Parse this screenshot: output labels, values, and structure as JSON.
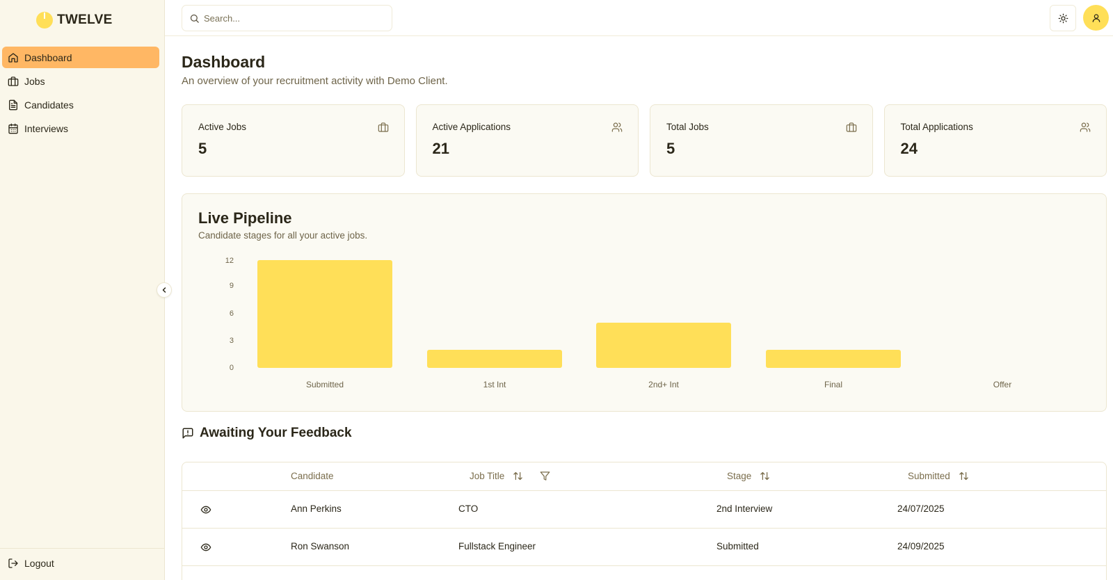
{
  "brand": {
    "name": "TWELVE"
  },
  "sidebar": {
    "items": [
      {
        "label": "Dashboard",
        "icon": "home-icon",
        "active": true
      },
      {
        "label": "Jobs",
        "icon": "briefcase-icon",
        "active": false
      },
      {
        "label": "Candidates",
        "icon": "file-text-icon",
        "active": false
      },
      {
        "label": "Interviews",
        "icon": "calendar-icon",
        "active": false
      }
    ],
    "logout_label": "Logout"
  },
  "topbar": {
    "search_placeholder": "Search...",
    "theme_icon": "sun-icon",
    "avatar_icon": "user-icon"
  },
  "page": {
    "title": "Dashboard",
    "subtitle": "An overview of your recruitment activity with Demo Client."
  },
  "stats": [
    {
      "label": "Active Jobs",
      "value": "5",
      "icon": "briefcase-icon"
    },
    {
      "label": "Active Applications",
      "value": "21",
      "icon": "users-icon"
    },
    {
      "label": "Total Jobs",
      "value": "5",
      "icon": "briefcase-icon"
    },
    {
      "label": "Total Applications",
      "value": "24",
      "icon": "users-icon"
    }
  ],
  "pipeline": {
    "title": "Live Pipeline",
    "subtitle": "Candidate stages for all your active jobs."
  },
  "chart_data": {
    "type": "bar",
    "title": "Live Pipeline",
    "subtitle": "Candidate stages for all your active jobs.",
    "categories": [
      "Submitted",
      "1st Int",
      "2nd+ Int",
      "Final",
      "Offer"
    ],
    "values": [
      12,
      2,
      5,
      2,
      0
    ],
    "yticks": [
      "0",
      "3",
      "6",
      "9",
      "12"
    ],
    "ylim": [
      0,
      12
    ],
    "xlabel": "",
    "ylabel": "",
    "grid": false,
    "bar_color": "#ffdf58"
  },
  "feedback": {
    "title": "Awaiting Your Feedback",
    "columns": [
      "Candidate",
      "Job Title",
      "Stage",
      "Submitted"
    ],
    "rows": [
      {
        "candidate": "Ann Perkins",
        "job_title": "CTO",
        "stage": "2nd Interview",
        "submitted": "24/07/2025"
      },
      {
        "candidate": "Ron Swanson",
        "job_title": "Fullstack Engineer",
        "stage": "Submitted",
        "submitted": "24/09/2025"
      }
    ]
  },
  "colors": {
    "accent_active": "#ffb764",
    "brand_yellow": "#ffdf58",
    "sidebar_bg": "#faf7ea",
    "card_bg": "#fbfaf3",
    "border": "#ece6d0"
  }
}
